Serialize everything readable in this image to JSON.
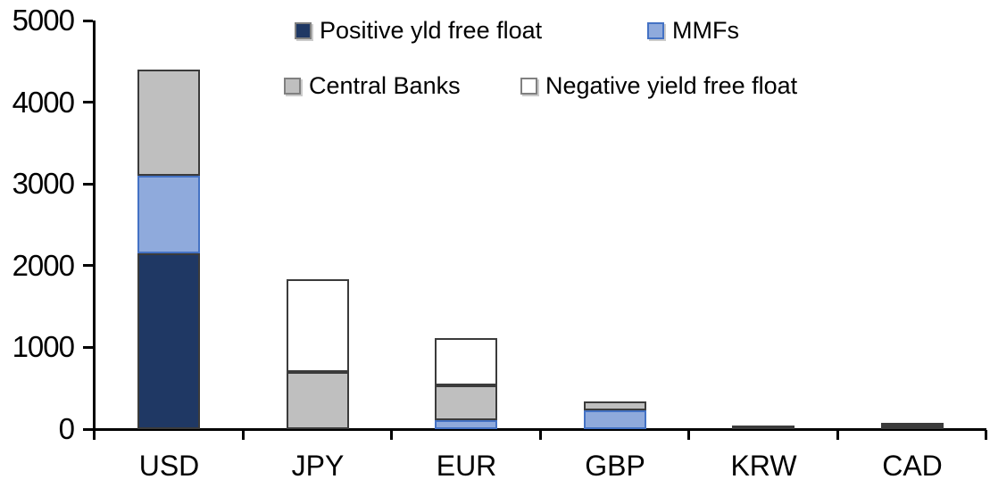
{
  "chart_data": {
    "type": "bar",
    "stacked": true,
    "title": "",
    "xlabel": "",
    "ylabel": "",
    "categories": [
      "USD",
      "JPY",
      "EUR",
      "GBP",
      "KRW",
      "CAD"
    ],
    "series": [
      {
        "name": "Positive yld free float",
        "color": "#1F3864",
        "border_color": "#3b3b3b",
        "values": [
          2150,
          0,
          0,
          0,
          45,
          30
        ]
      },
      {
        "name": "MMFs",
        "color": "#8FAADC",
        "border_color": "#4472C4",
        "values": [
          950,
          0,
          110,
          230,
          0,
          0
        ]
      },
      {
        "name": "Central Banks",
        "color": "#BFBFBF",
        "border_color": "#3b3b3b",
        "values": [
          1300,
          700,
          430,
          110,
          0,
          30
        ]
      },
      {
        "name": "Negative yield free float",
        "color": "#FFFFFF",
        "border_color": "#3b3b3b",
        "values": [
          0,
          1130,
          570,
          0,
          0,
          0
        ]
      }
    ],
    "totals": [
      4400,
      1830,
      1110,
      340,
      45,
      60
    ],
    "ylim": [
      0,
      5000
    ],
    "yticks": [
      "0",
      "1000",
      "2000",
      "3000",
      "4000",
      "5000"
    ],
    "grid": false,
    "legend_position": "top-inside",
    "legend_order": [
      "Positive yld free float",
      "MMFs",
      "Central Banks",
      "Negative yield free float"
    ],
    "axis_color": "#000000",
    "text_color": "#000000"
  }
}
